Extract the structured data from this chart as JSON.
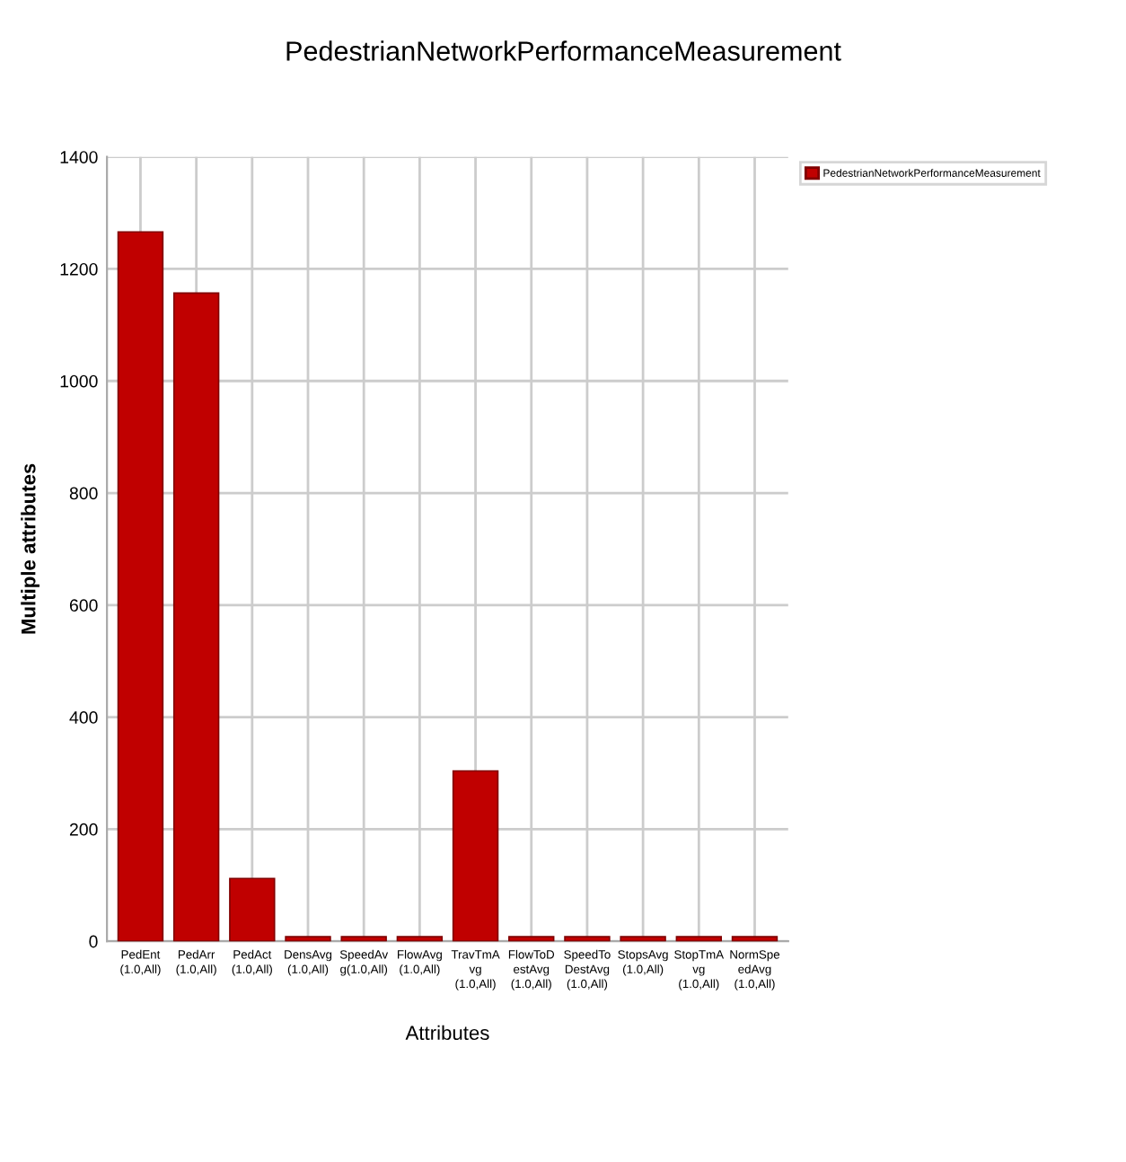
{
  "chart_data": {
    "type": "bar",
    "title": "PedestrianNetworkPerformanceMeasurement",
    "xlabel": "Attributes",
    "ylabel": "Multiple attributes",
    "categories": [
      "PedEnt\n(1.0,All)",
      "PedArr\n(1.0,All)",
      "PedAct\n(1.0,All)",
      "DensAvg\n(1.0,All)",
      "SpeedAv\ng(1.0,All)",
      "FlowAvg\n(1.0,All)",
      "TravTmA\nvg\n(1.0,All)",
      "FlowToD\nestAvg\n(1.0,All)",
      "SpeedTo\nDestAvg\n(1.0,All)",
      "StopsAvg\n(1.0,All)",
      "StopTmA\nvg\n(1.0,All)",
      "NormSpe\nedAvg\n(1.0,All)"
    ],
    "series": [
      {
        "name": "PedestrianNetworkPerformanceMeasurement",
        "color": "#c00000",
        "values": [
          1266,
          1157,
          112,
          8,
          8,
          8,
          304,
          8,
          8,
          8,
          8,
          8
        ]
      }
    ],
    "ylim": [
      0,
      1400
    ],
    "yticks": [
      0,
      200,
      400,
      600,
      800,
      1000,
      1200,
      1400
    ],
    "grid": true,
    "legend": "top right"
  }
}
